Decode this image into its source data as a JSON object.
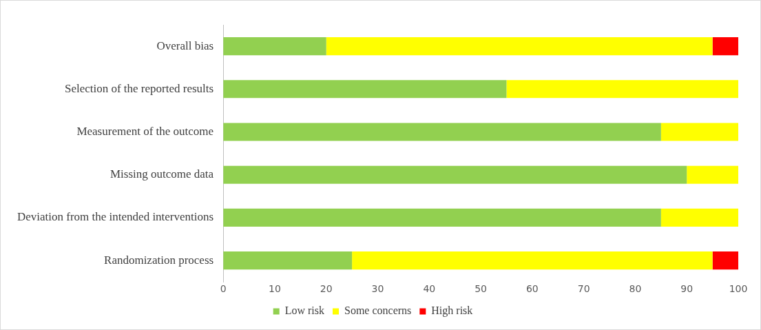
{
  "chart_data": {
    "type": "bar",
    "orientation": "horizontal",
    "stacked": true,
    "categories": [
      "Overall bias",
      "Selection of the reported results",
      "Measurement of the outcome",
      "Missing outcome data",
      "Deviation from the intended interventions",
      "Randomization process"
    ],
    "series": [
      {
        "name": "Low risk",
        "color": "#92d050",
        "values": [
          20,
          55,
          85,
          90,
          85,
          25
        ]
      },
      {
        "name": "Some concerns",
        "color": "#ffff00",
        "values": [
          75,
          45,
          15,
          10,
          15,
          70
        ]
      },
      {
        "name": "High risk",
        "color": "#ff0000",
        "values": [
          5,
          null,
          null,
          null,
          null,
          5
        ]
      }
    ],
    "xlim": [
      0,
      100
    ],
    "xticks": [
      0,
      10,
      20,
      30,
      40,
      50,
      60,
      70,
      80,
      90,
      100
    ],
    "grid": false,
    "legend": "bottom"
  }
}
